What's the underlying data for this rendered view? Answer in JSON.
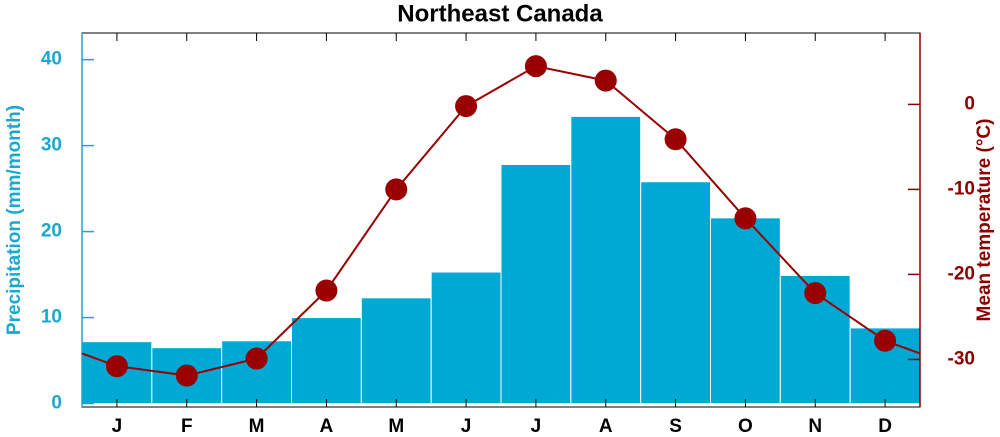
{
  "chart_data": {
    "type": "bar",
    "title": "Northeast Canada",
    "categories": [
      "J",
      "F",
      "M",
      "A",
      "M",
      "J",
      "J",
      "A",
      "S",
      "O",
      "N",
      "D"
    ],
    "series": [
      {
        "type": "bar",
        "color": "#00a8d4",
        "values": [
          7.2,
          6.5,
          7.3,
          10.0,
          12.3,
          15.3,
          27.8,
          33.4,
          25.8,
          21.6,
          14.9,
          8.8
        ]
      },
      {
        "type": "line",
        "axis": "y2",
        "color": "#990000",
        "values": [
          -30.8,
          -31.9,
          -29.9,
          -21.9,
          -10.0,
          -0.2,
          4.5,
          2.8,
          -4.1,
          -13.4,
          -22.2,
          -27.8
        ]
      }
    ],
    "ylabel": "Precipitation (mm/month)",
    "y2label": "Mean temperature (°C)",
    "ylim": [
      -0.4,
      43.1
    ],
    "yticks": [
      0,
      10,
      20,
      30,
      40
    ],
    "ycolor": "#1aa8d0",
    "y2lim": [
      -35.6,
      8.4
    ],
    "y2ticks": [
      -30,
      -20,
      -10,
      0
    ],
    "y2color": "#8b0000"
  }
}
